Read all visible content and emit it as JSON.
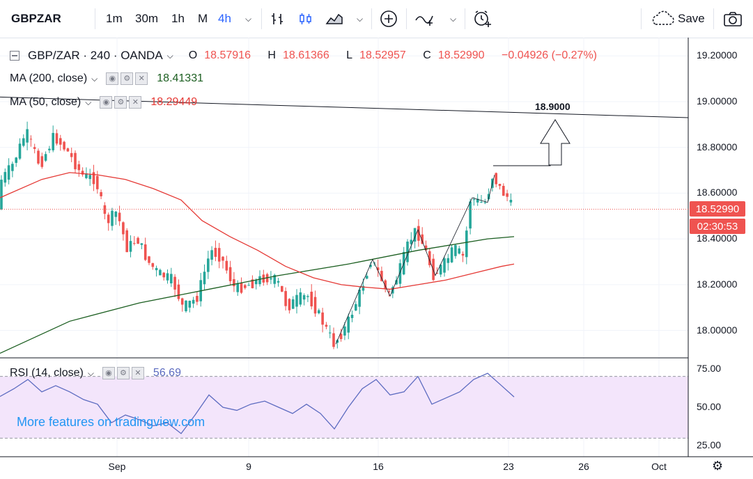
{
  "toolbar": {
    "symbol": "GBPZAR",
    "intervals": [
      "1m",
      "30m",
      "1h",
      "M",
      "4h"
    ],
    "active_interval": "4h",
    "save_label": "Save"
  },
  "legend": {
    "pair": "GBP/ZAR · 240 · OANDA",
    "open_label": "O",
    "open": "18.57916",
    "high_label": "H",
    "high": "18.61366",
    "low_label": "L",
    "low": "18.52957",
    "close_label": "C",
    "close": "18.52990",
    "change": "−0.04926 (−0.27%)"
  },
  "ma200": {
    "label": "MA (200, close)",
    "value": "18.41331",
    "color": "#1b5e20"
  },
  "ma50": {
    "label": "MA (50, close)",
    "value": "18.29449",
    "color": "#e53935"
  },
  "rsi": {
    "label": "RSI (14, close)",
    "value": "56.69",
    "color": "#5c6bc0"
  },
  "watermark": "More features on tradingview.com",
  "last_price_tag": "18.52990",
  "countdown": "02:30:53",
  "annotation": "18.9000",
  "colors": {
    "up": "#26a69a",
    "down": "#ef5350",
    "rsi_band": "#f3e5fb"
  },
  "chart_data": {
    "type": "candlestick",
    "title": "GBP/ZAR · 240 · OANDA",
    "y_ticks": [
      "19.20000",
      "19.00000",
      "18.80000",
      "18.60000",
      "18.40000",
      "18.20000",
      "18.00000"
    ],
    "ylim": [
      17.88,
      19.28
    ],
    "x_ticks": [
      "Sep",
      "9",
      "16",
      "23",
      "26",
      "Oct"
    ],
    "rsi_ticks": [
      "75.00",
      "50.00",
      "25.00"
    ],
    "rsi_ylim": [
      18,
      82
    ],
    "rsi_band": [
      30,
      70
    ],
    "anchors": [
      {
        "x": 0,
        "y": 18.64
      },
      {
        "x": 20,
        "y": 18.72
      },
      {
        "x": 40,
        "y": 18.87
      },
      {
        "x": 60,
        "y": 18.72
      },
      {
        "x": 80,
        "y": 18.85
      },
      {
        "x": 100,
        "y": 18.78
      },
      {
        "x": 120,
        "y": 18.68
      },
      {
        "x": 140,
        "y": 18.66
      },
      {
        "x": 155,
        "y": 18.47
      },
      {
        "x": 170,
        "y": 18.52
      },
      {
        "x": 185,
        "y": 18.36
      },
      {
        "x": 200,
        "y": 18.4
      },
      {
        "x": 215,
        "y": 18.3
      },
      {
        "x": 230,
        "y": 18.25
      },
      {
        "x": 250,
        "y": 18.22
      },
      {
        "x": 265,
        "y": 18.1
      },
      {
        "x": 285,
        "y": 18.14
      },
      {
        "x": 305,
        "y": 18.35
      },
      {
        "x": 320,
        "y": 18.32
      },
      {
        "x": 340,
        "y": 18.18
      },
      {
        "x": 360,
        "y": 18.2
      },
      {
        "x": 380,
        "y": 18.23
      },
      {
        "x": 400,
        "y": 18.22
      },
      {
        "x": 415,
        "y": 18.1
      },
      {
        "x": 430,
        "y": 18.14
      },
      {
        "x": 445,
        "y": 18.15
      },
      {
        "x": 460,
        "y": 18.07
      },
      {
        "x": 482,
        "y": 17.94
      },
      {
        "x": 500,
        "y": 18.02
      },
      {
        "x": 520,
        "y": 18.17
      },
      {
        "x": 535,
        "y": 18.31
      },
      {
        "x": 548,
        "y": 18.24
      },
      {
        "x": 560,
        "y": 18.15
      },
      {
        "x": 575,
        "y": 18.25
      },
      {
        "x": 590,
        "y": 18.39
      },
      {
        "x": 600,
        "y": 18.44
      },
      {
        "x": 612,
        "y": 18.36
      },
      {
        "x": 625,
        "y": 18.24
      },
      {
        "x": 640,
        "y": 18.29
      },
      {
        "x": 655,
        "y": 18.36
      },
      {
        "x": 668,
        "y": 18.32
      },
      {
        "x": 678,
        "y": 18.58
      },
      {
        "x": 690,
        "y": 18.56
      },
      {
        "x": 700,
        "y": 18.56
      },
      {
        "x": 710,
        "y": 18.68
      },
      {
        "x": 722,
        "y": 18.61
      },
      {
        "x": 732,
        "y": 18.58
      },
      {
        "x": 738,
        "y": 18.53
      }
    ],
    "ma200_points": [
      [
        0,
        17.9
      ],
      [
        100,
        18.04
      ],
      [
        200,
        18.12
      ],
      [
        300,
        18.18
      ],
      [
        400,
        18.24
      ],
      [
        500,
        18.29
      ],
      [
        600,
        18.35
      ],
      [
        700,
        18.4
      ],
      [
        738,
        18.41
      ]
    ],
    "ma50_points": [
      [
        0,
        18.58
      ],
      [
        60,
        18.66
      ],
      [
        100,
        18.69
      ],
      [
        140,
        18.68
      ],
      [
        180,
        18.66
      ],
      [
        220,
        18.62
      ],
      [
        260,
        18.57
      ],
      [
        290,
        18.48
      ],
      [
        330,
        18.41
      ],
      [
        370,
        18.35
      ],
      [
        410,
        18.28
      ],
      [
        450,
        18.23
      ],
      [
        490,
        18.2
      ],
      [
        520,
        18.19
      ],
      [
        560,
        18.18
      ],
      [
        600,
        18.2
      ],
      [
        640,
        18.22
      ],
      [
        680,
        18.25
      ],
      [
        720,
        18.28
      ],
      [
        738,
        18.29
      ]
    ],
    "trend_line": [
      [
        0,
        19.02
      ],
      [
        988,
        18.93
      ]
    ],
    "zigzag": [
      [
        482,
        17.94
      ],
      [
        535,
        18.31
      ],
      [
        560,
        18.15
      ],
      [
        600,
        18.44
      ],
      [
        625,
        18.24
      ],
      [
        678,
        18.58
      ],
      [
        700,
        18.56
      ],
      [
        710,
        18.68
      ]
    ],
    "rsi_points": [
      [
        0,
        57
      ],
      [
        20,
        62
      ],
      [
        40,
        68
      ],
      [
        60,
        60
      ],
      [
        80,
        64
      ],
      [
        100,
        60
      ],
      [
        120,
        55
      ],
      [
        140,
        52
      ],
      [
        160,
        40
      ],
      [
        180,
        45
      ],
      [
        200,
        42
      ],
      [
        220,
        38
      ],
      [
        240,
        40
      ],
      [
        260,
        33
      ],
      [
        280,
        45
      ],
      [
        300,
        58
      ],
      [
        320,
        50
      ],
      [
        340,
        48
      ],
      [
        360,
        52
      ],
      [
        380,
        54
      ],
      [
        400,
        50
      ],
      [
        420,
        46
      ],
      [
        440,
        52
      ],
      [
        460,
        46
      ],
      [
        480,
        36
      ],
      [
        500,
        50
      ],
      [
        520,
        62
      ],
      [
        540,
        68
      ],
      [
        560,
        58
      ],
      [
        580,
        60
      ],
      [
        600,
        70
      ],
      [
        620,
        52
      ],
      [
        640,
        56
      ],
      [
        660,
        60
      ],
      [
        680,
        68
      ],
      [
        700,
        72
      ],
      [
        720,
        64
      ],
      [
        738,
        56.69
      ]
    ]
  }
}
